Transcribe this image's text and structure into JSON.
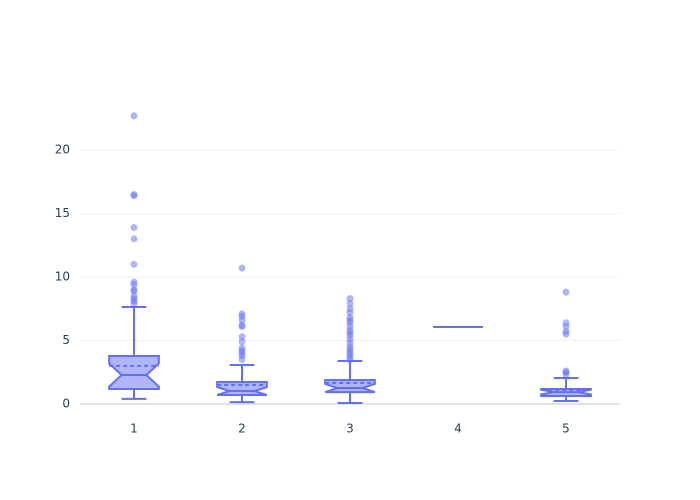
{
  "chart_data": {
    "type": "box",
    "categories": [
      "1",
      "2",
      "3",
      "4",
      "5"
    ],
    "color": "#636efa",
    "boxes": [
      {
        "lower": 0.4,
        "q1": 1.18,
        "median": 2.28,
        "q3": 3.78,
        "upper": 7.64,
        "mean": 3.0,
        "outliers": [
          22.7,
          16.5,
          16.4,
          13.9,
          13.0,
          11.0,
          9.6,
          9.4,
          9.0,
          8.9,
          8.5,
          8.3,
          8.1,
          7.9
        ]
      },
      {
        "lower": 0.15,
        "q1": 0.71,
        "median": 1.02,
        "q3": 1.73,
        "upper": 3.07,
        "mean": 1.5,
        "outliers": [
          10.7,
          7.1,
          6.9,
          6.6,
          6.2,
          6.1,
          5.3,
          4.9,
          4.4,
          4.2,
          4.0,
          3.8,
          3.5
        ]
      },
      {
        "lower": 0.08,
        "q1": 0.94,
        "median": 1.26,
        "q3": 1.89,
        "upper": 3.39,
        "mean": 1.65,
        "outliers": [
          8.3,
          7.9,
          7.5,
          7.2,
          6.8,
          6.6,
          6.4,
          6.1,
          5.8,
          5.6,
          5.4,
          5.1,
          4.8,
          4.5,
          4.3,
          4.1,
          3.9,
          3.7,
          3.5
        ]
      },
      {
        "lower": 6.06,
        "q1": 6.06,
        "median": 6.06,
        "q3": 6.06,
        "upper": 6.06,
        "mean": 6.06,
        "outliers": []
      },
      {
        "lower": 0.24,
        "q1": 0.63,
        "median": 0.94,
        "q3": 1.18,
        "upper": 2.05,
        "mean": 1.1,
        "outliers": [
          8.8,
          6.4,
          6.1,
          5.7,
          5.5,
          2.6,
          2.5,
          2.3
        ]
      }
    ],
    "ylim": [
      -1.26,
      23.94
    ],
    "yticks": [
      0,
      5,
      10,
      15,
      20
    ],
    "grid": true
  }
}
